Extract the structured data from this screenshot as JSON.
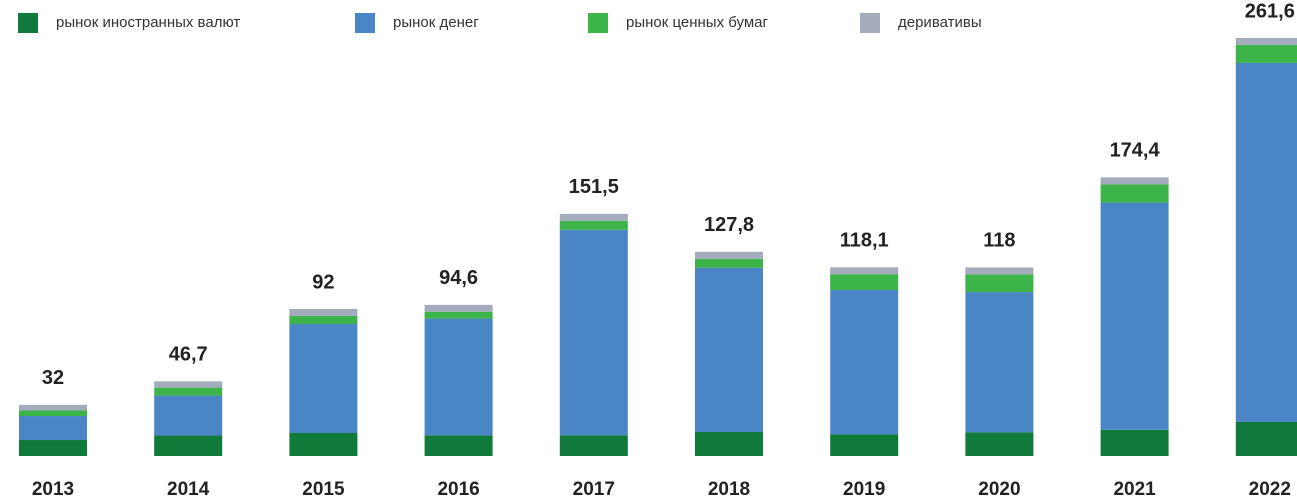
{
  "chart_data": {
    "type": "stacked-bar",
    "categories": [
      "2013",
      "2014",
      "2015",
      "2016",
      "2017",
      "2018",
      "2019",
      "2020",
      "2021",
      "2022"
    ],
    "series": [
      {
        "name": "рынок иностранных валют",
        "color": "#0f7a3a",
        "values": [
          10,
          12.8,
          14.4,
          12.9,
          13,
          15,
          13.6,
          14.8,
          16.4,
          21.3
        ]
      },
      {
        "name": "рынок денег",
        "color": "#4a86c5",
        "values": [
          15,
          25,
          68.2,
          73.1,
          128.6,
          102.8,
          90.3,
          87.8,
          142.2,
          224.7
        ]
      },
      {
        "name": "рынок ценных бумаг",
        "color": "#3cb44a",
        "values": [
          3.5,
          5,
          5,
          4.3,
          5.6,
          5.6,
          9.9,
          11.1,
          11.4,
          11.3
        ]
      },
      {
        "name": "деривативы",
        "color": "#a3abbd",
        "values": [
          3.5,
          3.9,
          4.4,
          4.3,
          4.3,
          4.4,
          4.3,
          4.3,
          4.4,
          4.3
        ]
      }
    ],
    "totals": [
      32,
      46.7,
      92,
      94.6,
      151.5,
      127.8,
      118.1,
      118,
      174.4,
      261.6
    ],
    "total_labels": [
      "32",
      "46,7",
      "92",
      "94,6",
      "151,5",
      "127,8",
      "118,1",
      "118",
      "174,4",
      "261,6"
    ],
    "legend": "top"
  }
}
